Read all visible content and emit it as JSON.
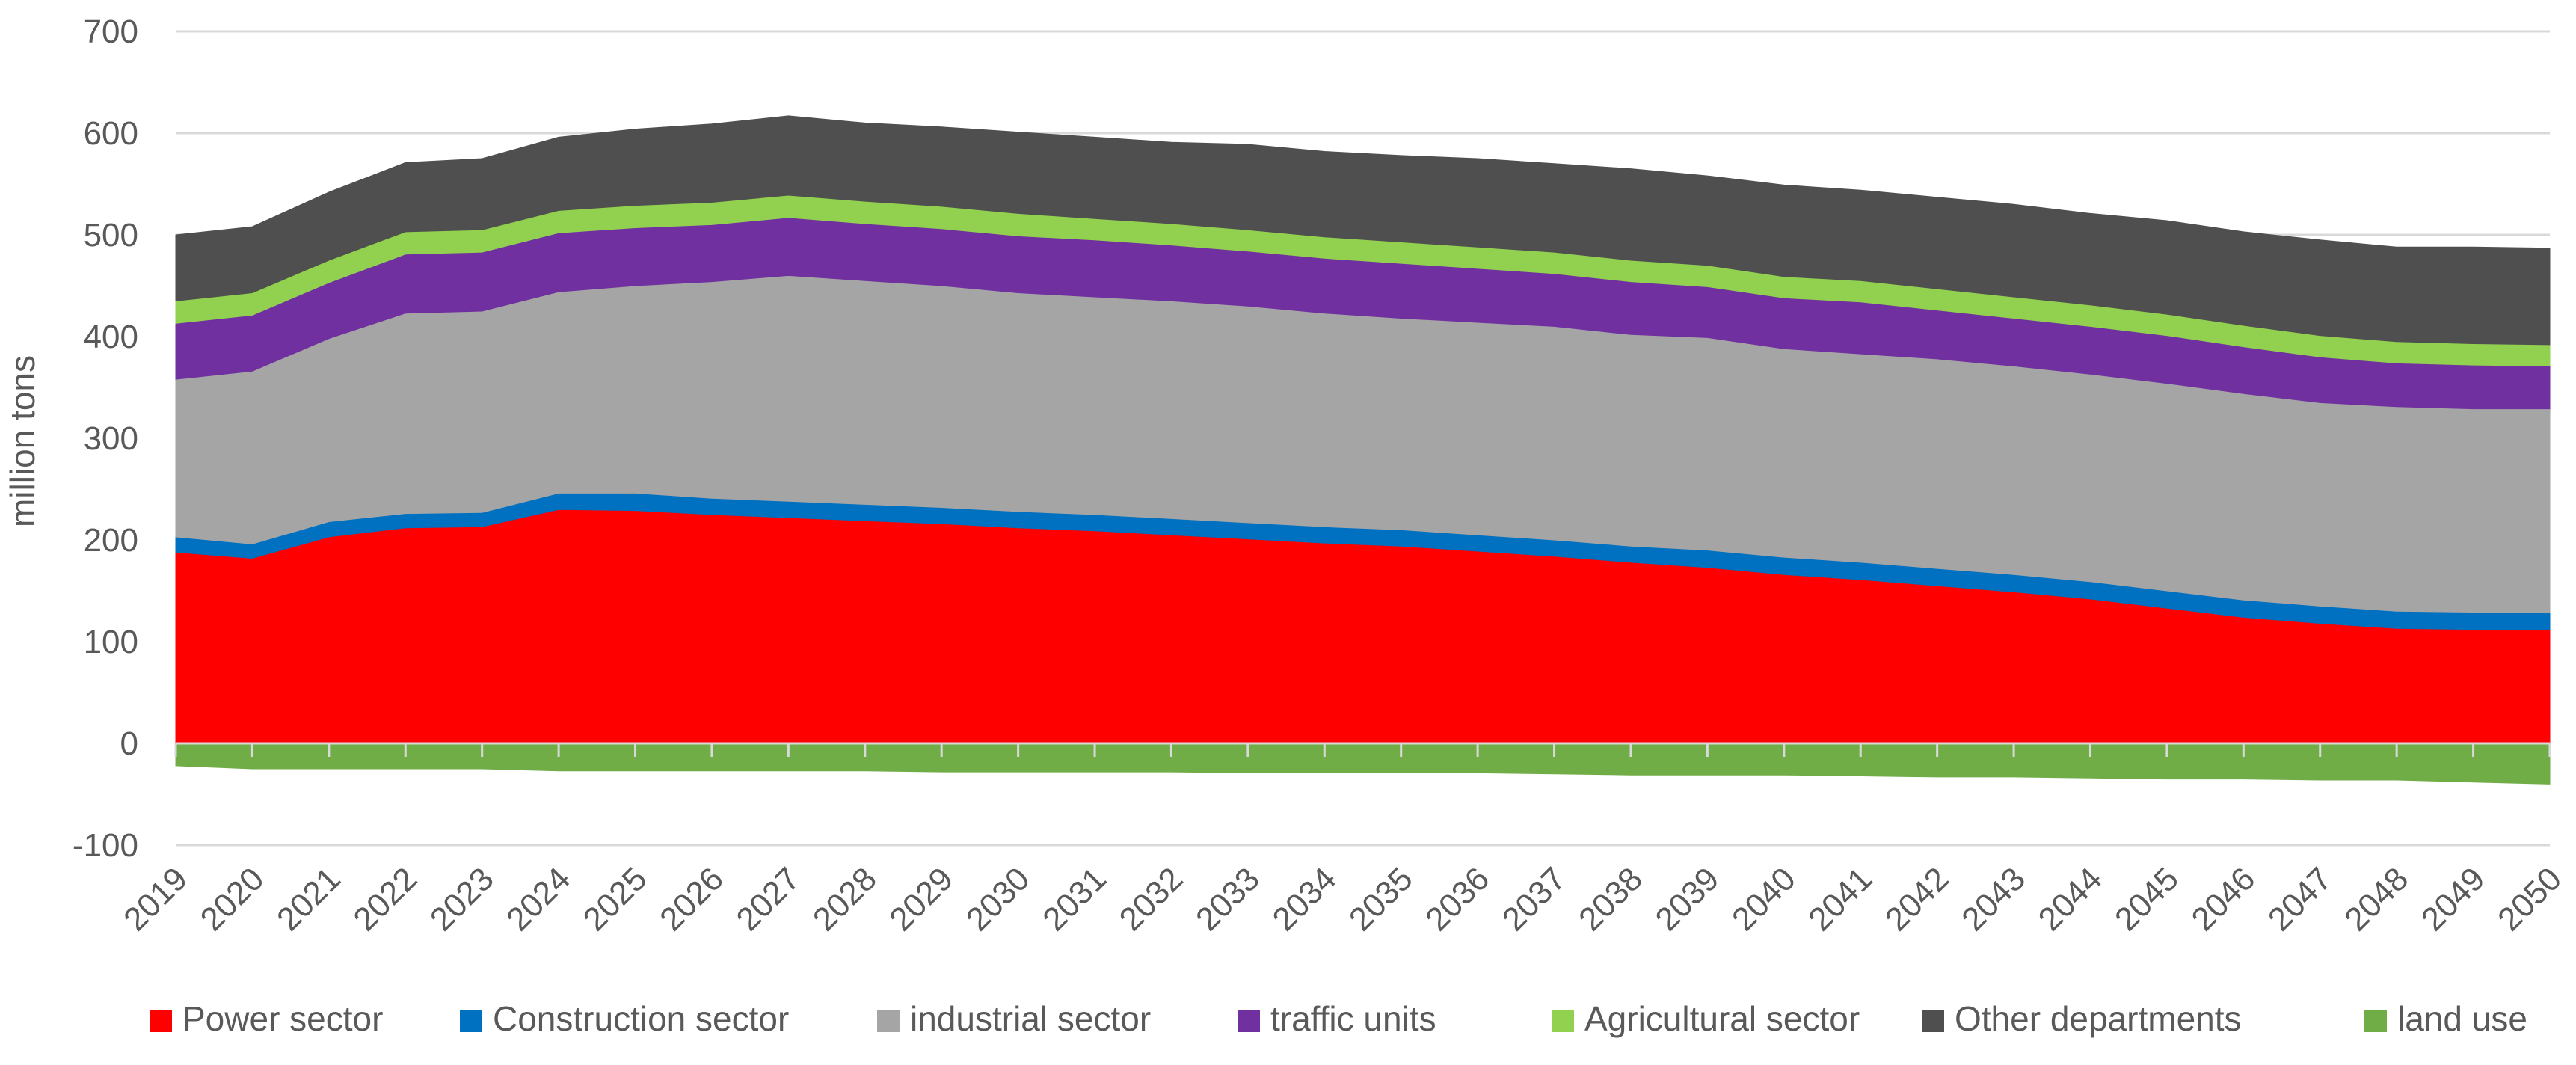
{
  "chart_data": {
    "type": "area",
    "stacked": true,
    "title": "",
    "xlabel": "",
    "ylabel": "million tons",
    "ylim": [
      -100,
      700
    ],
    "yticks": [
      -100,
      0,
      100,
      200,
      300,
      400,
      500,
      600,
      700
    ],
    "grid": true,
    "legend_position": "bottom",
    "categories": [
      "2019",
      "2020",
      "2021",
      "2022",
      "2023",
      "2024",
      "2025",
      "2026",
      "2027",
      "2028",
      "2029",
      "2030",
      "2031",
      "2032",
      "2033",
      "2034",
      "2035",
      "2036",
      "2037",
      "2038",
      "2039",
      "2040",
      "2041",
      "2042",
      "2043",
      "2044",
      "2045",
      "2046",
      "2047",
      "2048",
      "2049",
      "2050"
    ],
    "series": [
      {
        "name": "Power sector",
        "color": "#ff0000",
        "values": [
          188,
          182,
          203,
          212,
          213,
          230,
          229,
          225,
          222,
          219,
          216,
          212,
          209,
          205,
          201,
          197,
          194,
          189,
          184,
          178,
          173,
          166,
          161,
          155,
          149,
          142,
          133,
          124,
          118,
          113,
          112,
          112
        ]
      },
      {
        "name": "Construction sector",
        "color": "#0070c0",
        "values": [
          15,
          14,
          15,
          14,
          14,
          16,
          17,
          16,
          16,
          16,
          16,
          16,
          16,
          16,
          16,
          16,
          16,
          16,
          16,
          16,
          17,
          17,
          17,
          17,
          17,
          17,
          17,
          17,
          17,
          17,
          17,
          17
        ]
      },
      {
        "name": "industrial sector",
        "color": "#a5a5a5",
        "values": [
          155,
          170,
          180,
          197,
          198,
          198,
          204,
          213,
          222,
          220,
          218,
          215,
          214,
          214,
          213,
          210,
          208,
          209,
          210,
          208,
          209,
          205,
          205,
          206,
          205,
          204,
          204,
          203,
          200,
          201,
          200,
          200
        ]
      },
      {
        "name": "traffic units",
        "color": "#7030a0",
        "values": [
          55,
          55,
          55,
          58,
          58,
          58,
          57,
          56,
          57,
          56,
          56,
          56,
          56,
          55,
          54,
          54,
          54,
          53,
          52,
          52,
          50,
          50,
          51,
          48,
          47,
          47,
          47,
          46,
          45,
          43,
          43,
          42
        ]
      },
      {
        "name": "Agricultural sector",
        "color": "#92d050",
        "values": [
          22,
          22,
          22,
          22,
          22,
          22,
          22,
          22,
          22,
          22,
          22,
          22,
          21,
          21,
          21,
          21,
          21,
          21,
          21,
          21,
          21,
          21,
          21,
          21,
          21,
          21,
          21,
          21,
          21,
          21,
          21,
          21
        ]
      },
      {
        "name": "Other departments",
        "color": "#4f4f4f",
        "values": [
          65,
          65,
          67,
          68,
          70,
          72,
          75,
          77,
          78,
          77,
          78,
          80,
          80,
          80,
          84,
          84,
          85,
          87,
          87,
          90,
          88,
          90,
          89,
          90,
          91,
          90,
          92,
          92,
          94,
          93,
          95,
          95
        ]
      },
      {
        "name": "land use",
        "color": "#70ad47",
        "values": [
          -22,
          -25,
          -25,
          -25,
          -25,
          -27,
          -27,
          -27,
          -27,
          -27,
          -28,
          -28,
          -28,
          -28,
          -29,
          -29,
          -29,
          -29,
          -30,
          -31,
          -31,
          -31,
          -32,
          -33,
          -33,
          -34,
          -35,
          -35,
          -36,
          -36,
          -38,
          -40
        ]
      }
    ]
  }
}
